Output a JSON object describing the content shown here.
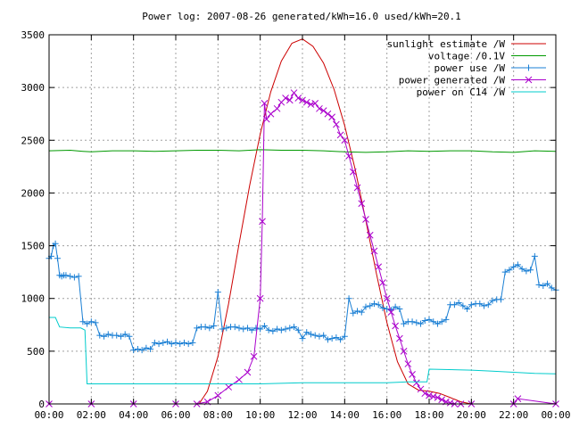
{
  "chart_data": {
    "type": "line",
    "title": "Power log: 2007-08-26 generated/kWh=16.0 used/kWh=20.1",
    "xlabel": "",
    "ylabel": "",
    "xlim": [
      0,
      24
    ],
    "ylim": [
      0,
      3500
    ],
    "grid": true,
    "legend_position": "top-right",
    "x_ticks": [
      {
        "value": 0,
        "label": "00:00"
      },
      {
        "value": 2,
        "label": "02:00"
      },
      {
        "value": 4,
        "label": "04:00"
      },
      {
        "value": 6,
        "label": "06:00"
      },
      {
        "value": 8,
        "label": "08:00"
      },
      {
        "value": 10,
        "label": "10:00"
      },
      {
        "value": 12,
        "label": "12:00"
      },
      {
        "value": 14,
        "label": "14:00"
      },
      {
        "value": 16,
        "label": "16:00"
      },
      {
        "value": 18,
        "label": "18:00"
      },
      {
        "value": 20,
        "label": "20:00"
      },
      {
        "value": 22,
        "label": "22:00"
      },
      {
        "value": 24,
        "label": "00:00"
      }
    ],
    "y_ticks": [
      {
        "value": 0,
        "label": "0"
      },
      {
        "value": 500,
        "label": "500"
      },
      {
        "value": 1000,
        "label": "1000"
      },
      {
        "value": 1500,
        "label": "1500"
      },
      {
        "value": 2000,
        "label": "2000"
      },
      {
        "value": 2500,
        "label": "2500"
      },
      {
        "value": 3000,
        "label": "3000"
      },
      {
        "value": 3500,
        "label": "3500"
      }
    ],
    "series": [
      {
        "name": "sunlight estimate /W",
        "color": "#cc0000",
        "marker": "none",
        "x": [
          0,
          7.1,
          7.5,
          8,
          8.5,
          9,
          9.5,
          10,
          10.5,
          11,
          11.5,
          12,
          12.5,
          13,
          13.5,
          14,
          14.5,
          15,
          15.5,
          16,
          16.5,
          17,
          17.5,
          18,
          18.5,
          19,
          19.5,
          20,
          24
        ],
        "y": [
          0,
          0,
          120,
          450,
          950,
          1520,
          2070,
          2560,
          2960,
          3250,
          3420,
          3460,
          3390,
          3230,
          2980,
          2640,
          2220,
          1740,
          1240,
          770,
          400,
          190,
          130,
          120,
          100,
          60,
          20,
          0,
          0
        ]
      },
      {
        "name": "voltage /0.1V",
        "color": "#009900",
        "marker": "none",
        "x": [
          0,
          1,
          1.6,
          2,
          3,
          4,
          5,
          6,
          7,
          8,
          9,
          10,
          11,
          12,
          13,
          14,
          15,
          16,
          17,
          18,
          19,
          20,
          21,
          22,
          23,
          24
        ],
        "y": [
          2400,
          2405,
          2395,
          2390,
          2400,
          2400,
          2395,
          2400,
          2405,
          2405,
          2400,
          2410,
          2405,
          2405,
          2400,
          2390,
          2385,
          2390,
          2400,
          2395,
          2400,
          2400,
          2390,
          2385,
          2400,
          2395
        ]
      },
      {
        "name": "power use /W",
        "color": "#1a7fd4",
        "marker": "plus",
        "x": [
          0,
          0.1,
          0.2,
          0.3,
          0.4,
          0.5,
          0.6,
          0.7,
          0.8,
          1.0,
          1.2,
          1.4,
          1.6,
          1.8,
          2.0,
          2.2,
          2.4,
          2.6,
          2.8,
          3.0,
          3.2,
          3.4,
          3.6,
          3.8,
          4.0,
          4.2,
          4.4,
          4.6,
          4.8,
          5.0,
          5.2,
          5.4,
          5.6,
          5.8,
          6.0,
          6.2,
          6.4,
          6.6,
          6.8,
          7.0,
          7.2,
          7.4,
          7.6,
          7.8,
          8.0,
          8.2,
          8.4,
          8.6,
          8.8,
          9.0,
          9.2,
          9.4,
          9.6,
          9.8,
          10.0,
          10.2,
          10.4,
          10.6,
          10.8,
          11.0,
          11.2,
          11.4,
          11.6,
          11.8,
          12.0,
          12.2,
          12.4,
          12.6,
          12.8,
          13.0,
          13.2,
          13.4,
          13.6,
          13.8,
          14.0,
          14.2,
          14.4,
          14.6,
          14.8,
          15.0,
          15.2,
          15.4,
          15.6,
          15.8,
          16.0,
          16.2,
          16.4,
          16.6,
          16.8,
          17.0,
          17.2,
          17.4,
          17.6,
          17.8,
          18.0,
          18.2,
          18.4,
          18.6,
          18.8,
          19.0,
          19.2,
          19.4,
          19.6,
          19.8,
          20.0,
          20.2,
          20.4,
          20.6,
          20.8,
          21.0,
          21.2,
          21.4,
          21.6,
          21.8,
          22.0,
          22.2,
          22.4,
          22.6,
          22.8,
          23.0,
          23.2,
          23.4,
          23.6,
          23.8,
          24.0
        ],
        "y": [
          1380,
          1400,
          1500,
          1520,
          1380,
          1220,
          1210,
          1220,
          1220,
          1210,
          1200,
          1210,
          780,
          760,
          780,
          770,
          650,
          640,
          660,
          650,
          650,
          640,
          660,
          640,
          510,
          520,
          510,
          530,
          520,
          580,
          570,
          580,
          590,
          570,
          580,
          570,
          580,
          570,
          580,
          720,
          730,
          730,
          720,
          740,
          1060,
          710,
          720,
          730,
          730,
          720,
          710,
          720,
          700,
          720,
          710,
          740,
          700,
          690,
          710,
          700,
          710,
          720,
          730,
          700,
          620,
          680,
          660,
          650,
          640,
          650,
          610,
          620,
          630,
          610,
          640,
          1000,
          860,
          880,
          870,
          920,
          930,
          950,
          940,
          910,
          900,
          890,
          920,
          900,
          760,
          780,
          780,
          770,
          760,
          790,
          800,
          780,
          760,
          780,
          800,
          940,
          940,
          960,
          930,
          900,
          940,
          950,
          950,
          930,
          940,
          980,
          990,
          990,
          1250,
          1270,
          1300,
          1320,
          1280,
          1260,
          1270,
          1400,
          1130,
          1120,
          1140,
          1100,
          1080
        ]
      },
      {
        "name": "power generated /W",
        "color": "#aa00cc",
        "marker": "cross",
        "x": [
          0,
          2,
          4,
          6,
          7.0,
          7.5,
          8.0,
          8.5,
          9.0,
          9.4,
          9.7,
          10.0,
          10.1,
          10.2,
          10.3,
          10.5,
          10.8,
          11.0,
          11.2,
          11.4,
          11.6,
          11.8,
          12.0,
          12.2,
          12.4,
          12.6,
          12.8,
          13.0,
          13.2,
          13.4,
          13.6,
          13.8,
          14.0,
          14.2,
          14.4,
          14.6,
          14.8,
          15.0,
          15.2,
          15.4,
          15.6,
          15.8,
          16.0,
          16.2,
          16.4,
          16.6,
          16.8,
          17.0,
          17.2,
          17.4,
          17.6,
          17.8,
          18.0,
          18.2,
          18.4,
          18.6,
          18.8,
          19.0,
          19.2,
          19.5,
          20.0,
          22.0,
          22.2,
          24.0
        ],
        "y": [
          0,
          0,
          0,
          0,
          0,
          20,
          80,
          160,
          230,
          300,
          450,
          1000,
          1730,
          2850,
          2700,
          2750,
          2800,
          2860,
          2900,
          2880,
          2950,
          2900,
          2880,
          2860,
          2840,
          2850,
          2800,
          2780,
          2750,
          2720,
          2650,
          2550,
          2500,
          2350,
          2200,
          2050,
          1900,
          1750,
          1600,
          1450,
          1300,
          1150,
          1000,
          870,
          740,
          620,
          500,
          380,
          280,
          200,
          140,
          100,
          80,
          70,
          60,
          40,
          20,
          10,
          0,
          0,
          0,
          0,
          50,
          0
        ]
      },
      {
        "name": "power on C14 /W",
        "color": "#00cccc",
        "marker": "none",
        "x": [
          0,
          0.3,
          0.5,
          1.0,
          1.5,
          1.7,
          1.8,
          2.0,
          4.0,
          6.0,
          8.0,
          10.0,
          12.0,
          14.0,
          16.0,
          17.0,
          17.9,
          18.0,
          20.0,
          21.0,
          22.0,
          23.0,
          24.0
        ],
        "y": [
          820,
          820,
          730,
          720,
          720,
          700,
          190,
          190,
          190,
          190,
          190,
          190,
          200,
          200,
          200,
          210,
          210,
          330,
          320,
          310,
          300,
          290,
          285
        ]
      }
    ]
  }
}
